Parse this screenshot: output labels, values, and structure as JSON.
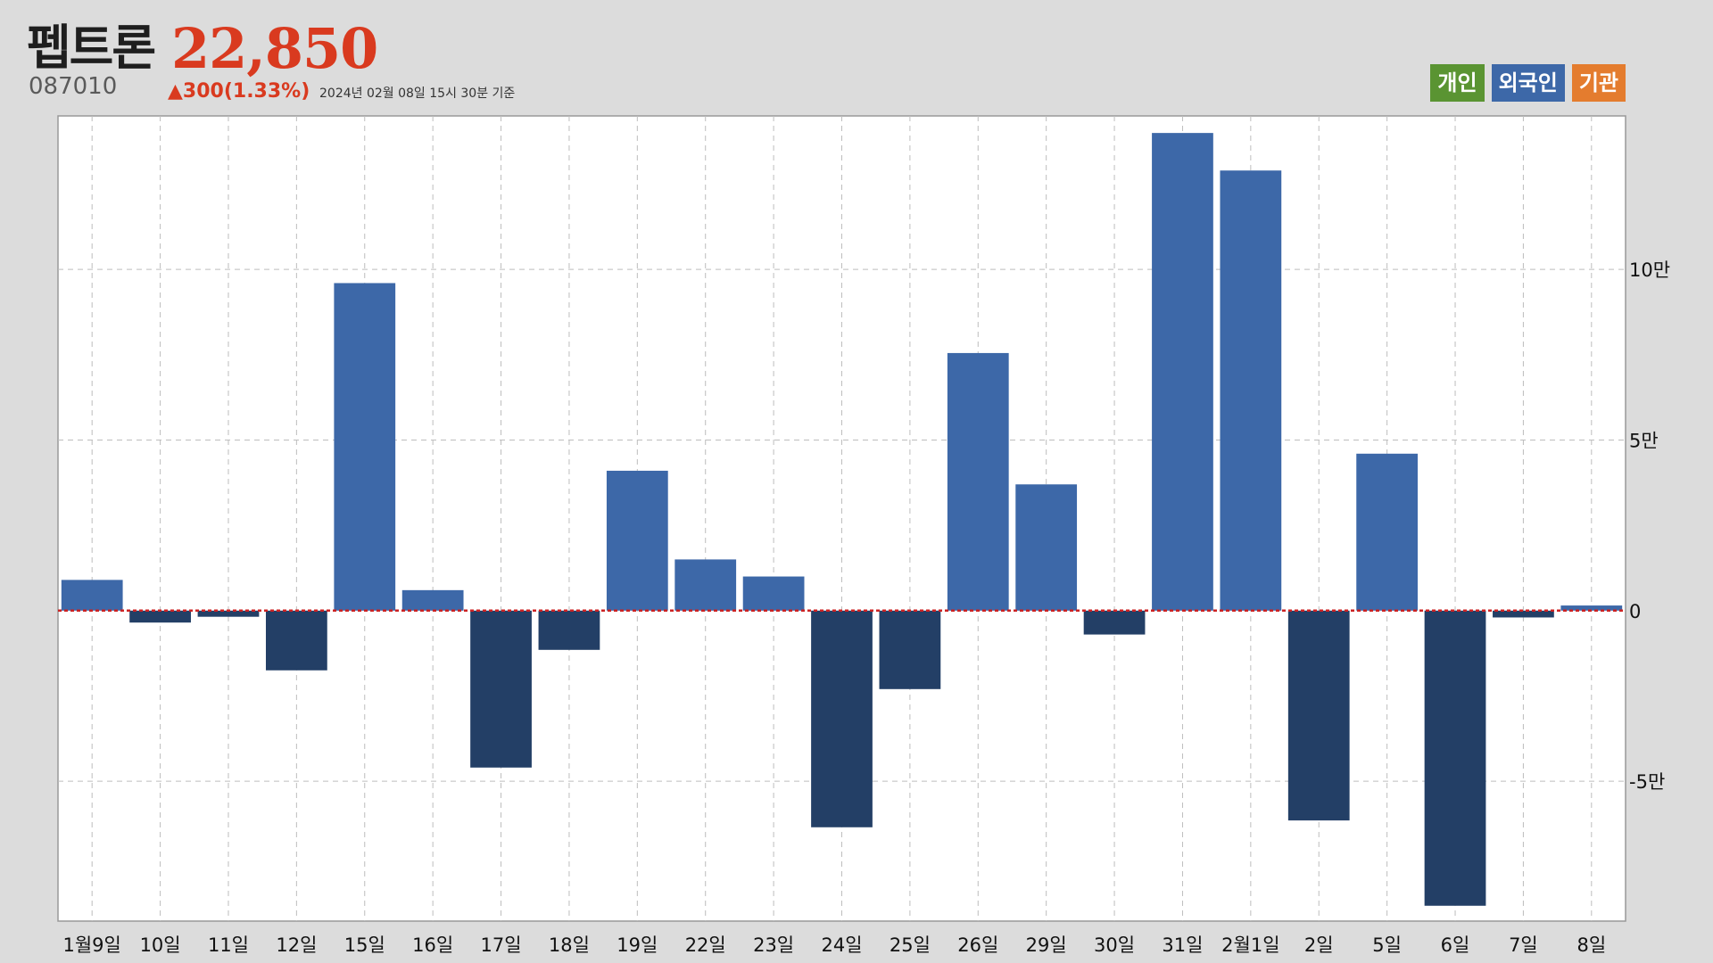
{
  "header": {
    "name": "펩트론",
    "price": "22,850",
    "code": "087010",
    "change": "▲300(1.33%)",
    "date": "2024년 02월 08일 15시 30분 기준"
  },
  "legend": [
    {
      "label": "개인",
      "color": "#5a9432"
    },
    {
      "label": "외국인",
      "color": "#3d68a8"
    },
    {
      "label": "기관",
      "color": "#e47c2e"
    }
  ],
  "colors": {
    "positive": "#3d68a8",
    "negative": "#233f66",
    "zero_line": "#cc2222"
  },
  "chart_data": {
    "type": "bar",
    "series": [
      {
        "name": "외국인",
        "values": [
          9000,
          -3500,
          -1800,
          -17500,
          96000,
          6000,
          -46000,
          -11500,
          41000,
          15000,
          10000,
          -63500,
          -23000,
          75500,
          37000,
          -7000,
          140000,
          129000,
          -61500,
          46000,
          -86500,
          -2000,
          1500
        ]
      }
    ],
    "categories": [
      "1월9일",
      "10일",
      "11일",
      "12일",
      "15일",
      "16일",
      "17일",
      "18일",
      "19일",
      "22일",
      "23일",
      "24일",
      "25일",
      "26일",
      "29일",
      "30일",
      "31일",
      "2월1일",
      "2일",
      "5일",
      "6일",
      "7일",
      "8일"
    ],
    "yticks": [
      {
        "value": 100000,
        "label": "10만"
      },
      {
        "value": 50000,
        "label": "5만"
      },
      {
        "value": 0,
        "label": "0"
      },
      {
        "value": -50000,
        "label": "-5만"
      }
    ],
    "ylim": [
      -91000,
      145000
    ],
    "grid": true
  }
}
